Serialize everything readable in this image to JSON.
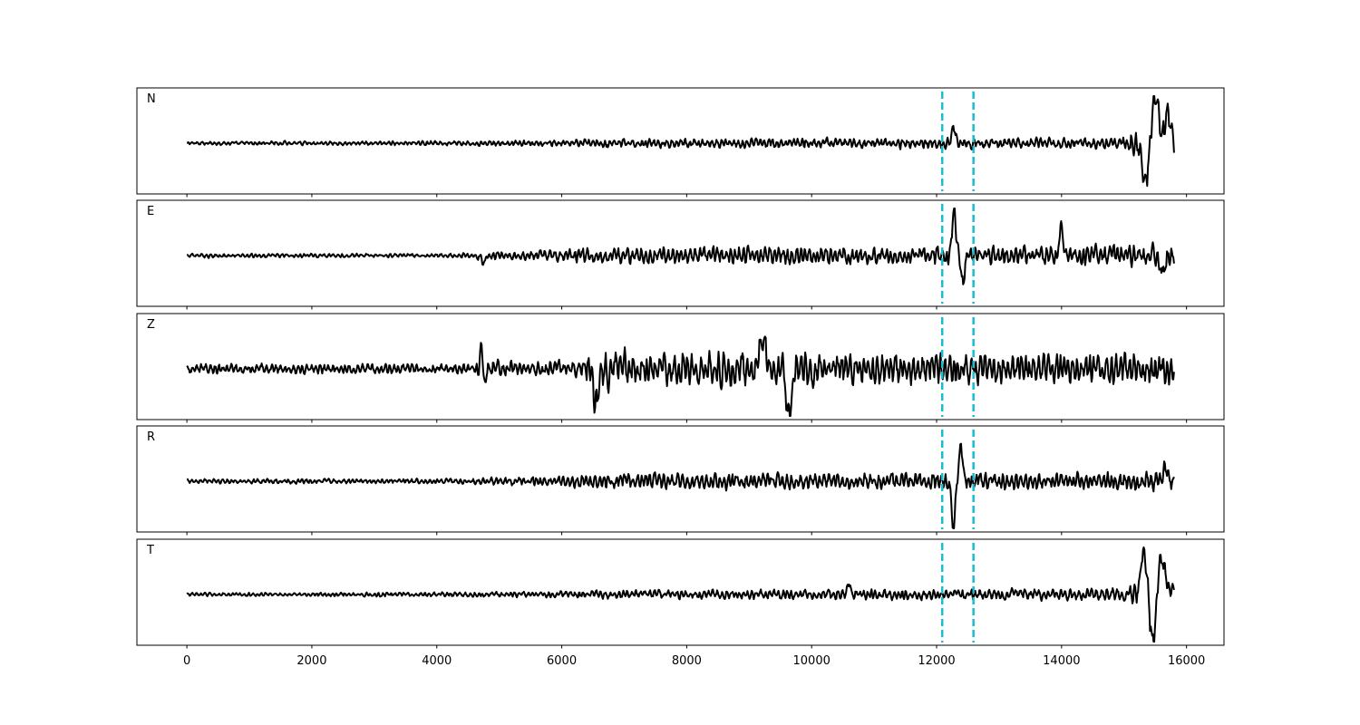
{
  "chart_data": {
    "type": "line",
    "xlim": [
      -800,
      16600
    ],
    "x_ticks": [
      0,
      2000,
      4000,
      6000,
      8000,
      10000,
      12000,
      14000,
      16000
    ],
    "tick_labels": [
      "0",
      "2000",
      "4000",
      "6000",
      "8000",
      "10000",
      "12000",
      "14000",
      "16000"
    ],
    "x_range": [
      0,
      15800
    ],
    "markers": {
      "x": [
        12090,
        12590
      ],
      "color": "#17becf",
      "style": "dashed"
    },
    "trace_color": "#000000",
    "panels": [
      {
        "label": "N",
        "envelope": [
          [
            0,
            0.06
          ],
          [
            4000,
            0.07
          ],
          [
            6000,
            0.1
          ],
          [
            6500,
            0.14
          ],
          [
            10000,
            0.16
          ],
          [
            11800,
            0.17
          ],
          [
            14800,
            0.17
          ],
          [
            15000,
            0.22
          ],
          [
            15200,
            0.45
          ],
          [
            15800,
            0.45
          ]
        ],
        "events": [
          {
            "x": 12270,
            "a": 0.35,
            "w": 40
          },
          {
            "x": 15350,
            "a": -0.85,
            "w": 70
          },
          {
            "x": 15500,
            "a": 1.0,
            "w": 80
          },
          {
            "x": 15700,
            "a": 0.6,
            "w": 60
          }
        ]
      },
      {
        "label": "E",
        "envelope": [
          [
            0,
            0.07
          ],
          [
            4000,
            0.06
          ],
          [
            4700,
            0.12
          ],
          [
            6000,
            0.18
          ],
          [
            6500,
            0.28
          ],
          [
            12000,
            0.3
          ],
          [
            14000,
            0.32
          ],
          [
            15800,
            0.36
          ]
        ],
        "events": [
          {
            "x": 4750,
            "a": -0.2,
            "w": 30
          },
          {
            "x": 12280,
            "a": 1.0,
            "w": 40
          },
          {
            "x": 12420,
            "a": -0.55,
            "w": 40
          },
          {
            "x": 13990,
            "a": 0.5,
            "w": 50
          },
          {
            "x": 15620,
            "a": -0.4,
            "w": 50
          }
        ]
      },
      {
        "label": "Z",
        "envelope": [
          [
            0,
            0.16
          ],
          [
            4600,
            0.16
          ],
          [
            4700,
            0.34
          ],
          [
            5500,
            0.22
          ],
          [
            6300,
            0.3
          ],
          [
            6500,
            0.62
          ],
          [
            8000,
            0.58
          ],
          [
            10000,
            0.55
          ],
          [
            12000,
            0.5
          ],
          [
            15800,
            0.52
          ]
        ],
        "events": [
          {
            "x": 4720,
            "a": 0.45,
            "w": 30
          },
          {
            "x": 4760,
            "a": -0.5,
            "w": 30
          },
          {
            "x": 9220,
            "a": 0.8,
            "w": 60
          },
          {
            "x": 9640,
            "a": -0.95,
            "w": 60
          },
          {
            "x": 6550,
            "a": -0.7,
            "w": 60
          }
        ]
      },
      {
        "label": "R",
        "envelope": [
          [
            0,
            0.08
          ],
          [
            4500,
            0.08
          ],
          [
            4800,
            0.12
          ],
          [
            6000,
            0.16
          ],
          [
            6500,
            0.25
          ],
          [
            12000,
            0.28
          ],
          [
            13500,
            0.28
          ],
          [
            15800,
            0.32
          ]
        ],
        "events": [
          {
            "x": 12270,
            "a": -1.0,
            "w": 40
          },
          {
            "x": 12390,
            "a": 0.75,
            "w": 40
          },
          {
            "x": 15660,
            "a": 0.35,
            "w": 50
          }
        ]
      },
      {
        "label": "T",
        "envelope": [
          [
            0,
            0.06
          ],
          [
            4000,
            0.07
          ],
          [
            4500,
            0.08
          ],
          [
            6000,
            0.1
          ],
          [
            6500,
            0.14
          ],
          [
            12000,
            0.17
          ],
          [
            13000,
            0.18
          ],
          [
            15000,
            0.2
          ],
          [
            15200,
            0.45
          ],
          [
            15800,
            0.45
          ]
        ],
        "events": [
          {
            "x": 10600,
            "a": 0.3,
            "w": 30
          },
          {
            "x": 15320,
            "a": 0.95,
            "w": 70
          },
          {
            "x": 15460,
            "a": -1.0,
            "w": 70
          },
          {
            "x": 15600,
            "a": 0.85,
            "w": 70
          },
          {
            "x": 15760,
            "a": 0.2,
            "w": 40
          }
        ]
      }
    ]
  }
}
